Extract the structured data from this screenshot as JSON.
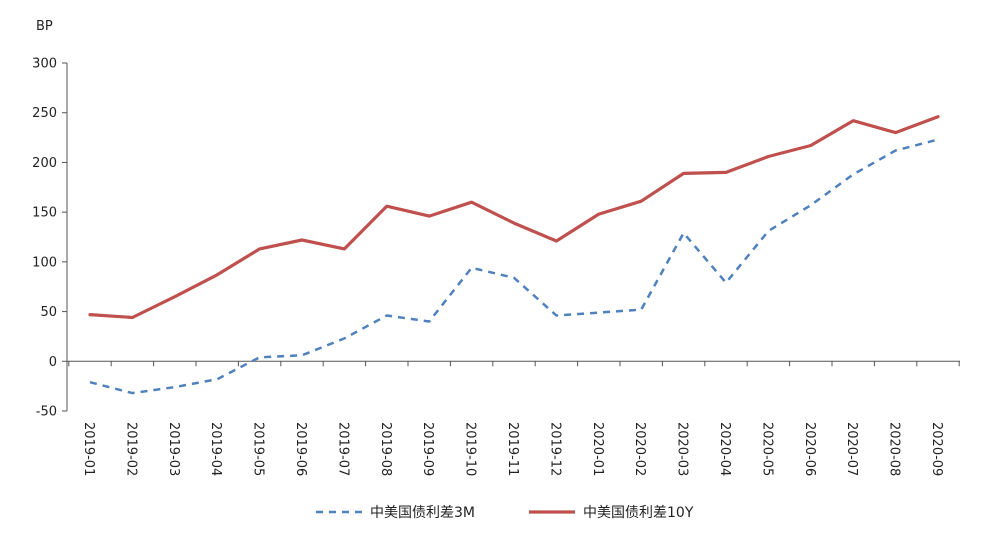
{
  "chart_data": {
    "type": "line",
    "title": "",
    "xlabel": "",
    "ylabel": "BP",
    "ylim": [
      -50,
      300
    ],
    "yticks": [
      -50,
      0,
      50,
      100,
      150,
      200,
      250,
      300
    ],
    "grid": false,
    "legend_position": "bottom",
    "categories": [
      "2019-01",
      "2019-02",
      "2019-03",
      "2019-04",
      "2019-05",
      "2019-06",
      "2019-07",
      "2019-08",
      "2019-09",
      "2019-10",
      "2019-11",
      "2019-12",
      "2020-01",
      "2020-02",
      "2020-03",
      "2020-04",
      "2020-05",
      "2020-06",
      "2020-07",
      "2020-08",
      "2020-09"
    ],
    "series": [
      {
        "name": "中美国债利差3M",
        "style": "dashed",
        "color": "#4F81BD",
        "values": [
          -21,
          -32,
          -26,
          -18,
          4,
          6,
          23,
          46,
          40,
          94,
          84,
          46,
          49,
          52,
          129,
          79,
          131,
          157,
          188,
          212,
          223
        ]
      },
      {
        "name": "中美国债利差10Y",
        "style": "solid",
        "color": "#C0504D",
        "values": [
          47,
          44,
          65,
          87,
          113,
          122,
          113,
          156,
          146,
          160,
          139,
          121,
          148,
          161,
          189,
          190,
          206,
          217,
          242,
          230,
          246
        ]
      }
    ]
  }
}
